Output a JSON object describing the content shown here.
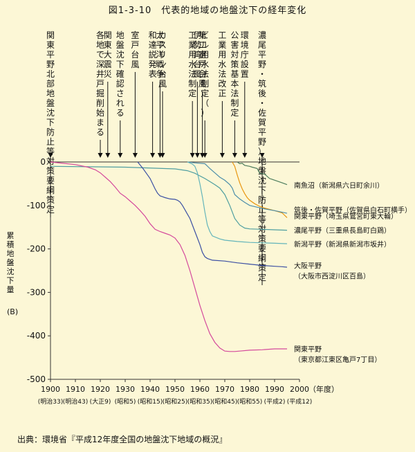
{
  "title": "図1-3-10　代表的地域の地盤沈下の経年変化",
  "source": "出典：環境省『平成12年度全国の地盤沈下地域の概況』",
  "chart_data": {
    "type": "line",
    "ylabel": "累積地盤沈下量",
    "yunit": "(B)",
    "xunit": "（年度）",
    "xlim": [
      1900,
      2000
    ],
    "ylim": [
      -500,
      0
    ],
    "xticks": [
      "1900",
      "1910",
      "1920",
      "1930",
      "1940",
      "1950",
      "1960",
      "1970",
      "1980",
      "1990",
      "2000"
    ],
    "yticks": [
      "0",
      "-100",
      "-200",
      "-300",
      "-400",
      "-500"
    ],
    "era_labels": [
      "(明治33)",
      "(明治43)",
      "(大正9)",
      "(昭和5)",
      "(昭和15)",
      "(昭和25)",
      "(昭和35)",
      "(昭和45)",
      "(昭和55)",
      "(平成2)",
      "(平成12)"
    ],
    "events": [
      {
        "year": 1900,
        "label": "関東平野北部地盤沈下防止等対策要綱策定"
      },
      {
        "year": 1985,
        "label": "濃尾平野・筑後・佐賀平野）地盤沈下防止等対策要綱策定"
      },
      {
        "year": 1978,
        "label": "環境庁設置"
      },
      {
        "year": 1974,
        "label": "公害対策基本法制定"
      },
      {
        "year": 1969,
        "label": "工業用水法改正"
      },
      {
        "year": 1962,
        "label": "ビル用水法制定（）"
      },
      {
        "year": 1961,
        "label": "第二室戸台風"
      },
      {
        "year": 1959,
        "label": "伊勢湾台風"
      },
      {
        "year": 1957,
        "label": "工業用水法制定"
      },
      {
        "year": 1945,
        "label": "カスリン台風"
      },
      {
        "year": 1944,
        "label": "太平洋戦争"
      },
      {
        "year": 1941,
        "label": "和達説発表"
      },
      {
        "year": 1934,
        "label": "室戸台風"
      },
      {
        "year": 1928,
        "label": "地盤沈下確認される"
      },
      {
        "year": 1923,
        "label": "関東大震災"
      },
      {
        "year": 1920,
        "label": "各地で深井戸掘削始まる"
      }
    ],
    "series": [
      {
        "name": "南魚沼（新潟県六日町余川）",
        "color": "#4d7d5d",
        "x": [
          1975,
          1976,
          1977,
          1978,
          1980,
          1981,
          1983,
          1984,
          1986,
          1988,
          1989,
          1991,
          1993,
          1995
        ],
        "y": [
          0,
          -4,
          -3,
          -8,
          -10,
          -12,
          -15,
          -26,
          -28,
          -38,
          -40,
          -44,
          -48,
          -52
        ]
      },
      {
        "name": "筑後・佐賀平野（佐賀県白石町横手）",
        "color": "#e8960f",
        "x": [
          1973,
          1974,
          1975,
          1976,
          1977,
          1978,
          1979,
          1980,
          1982,
          1984,
          1986,
          1988,
          1990,
          1993,
          1995
        ],
        "y": [
          0,
          -10,
          -30,
          -48,
          -62,
          -73,
          -82,
          -88,
          -96,
          -102,
          -106,
          -109,
          -112,
          -117,
          -128
        ]
      },
      {
        "name": "関東平野（埼玉県鷲宮町東大輪）",
        "color": "#4d8eaa",
        "x": [
          1955,
          1958,
          1962,
          1964,
          1966,
          1968,
          1970,
          1972,
          1973,
          1974,
          1976,
          1978,
          1980,
          1983,
          1986,
          1990,
          1995
        ],
        "y": [
          0,
          -2,
          -4,
          -15,
          -25,
          -35,
          -42,
          -52,
          -60,
          -75,
          -85,
          -93,
          -100,
          -104,
          -108,
          -112,
          -118
        ]
      },
      {
        "name": "濃尾平野（三重県長島町白鶏）",
        "color": "#4e9ea0",
        "x": [
          1900,
          1930,
          1950,
          1955,
          1958,
          1960,
          1962,
          1964,
          1966,
          1968,
          1970,
          1972,
          1974,
          1976,
          1978,
          1980,
          1985,
          1990,
          1995
        ],
        "y": [
          -10,
          -12,
          -16,
          -20,
          -26,
          -32,
          -38,
          -45,
          -52,
          -60,
          -75,
          -100,
          -130,
          -145,
          -152,
          -154,
          -155,
          -156,
          -157
        ]
      },
      {
        "name": "新潟平野（新潟県新潟市坂井）",
        "color": "#62b4ba",
        "x": [
          1955,
          1957,
          1958,
          1959,
          1960,
          1961,
          1962,
          1963,
          1964,
          1965,
          1968,
          1970,
          1975,
          1980,
          1985,
          1990,
          1995
        ],
        "y": [
          0,
          -5,
          -10,
          -25,
          -50,
          -80,
          -115,
          -145,
          -160,
          -170,
          -177,
          -180,
          -183,
          -185,
          -186,
          -187,
          -188
        ]
      },
      {
        "name": "大阪平野（大阪市西淀川区百島）",
        "color": "#3b4fa3",
        "x": [
          1935,
          1937,
          1939,
          1940,
          1941,
          1942,
          1943,
          1944,
          1945,
          1946,
          1948,
          1950,
          1951,
          1952,
          1953,
          1954,
          1955,
          1956,
          1957,
          1958,
          1959,
          1960,
          1961,
          1962,
          1963,
          1965,
          1970,
          1975,
          1980,
          1985,
          1990,
          1993,
          1995
        ],
        "y": [
          0,
          -14,
          -30,
          -38,
          -50,
          -62,
          -72,
          -78,
          -80,
          -82,
          -85,
          -86,
          -88,
          -92,
          -100,
          -110,
          -120,
          -130,
          -145,
          -160,
          -175,
          -190,
          -208,
          -218,
          -222,
          -226,
          -228,
          -232,
          -235,
          -238,
          -240,
          -241,
          -242
        ]
      },
      {
        "name": "関東平野（東京都江東区亀戸7丁目）",
        "color": "#d4499c",
        "x": [
          1900,
          1905,
          1910,
          1915,
          1918,
          1920,
          1922,
          1924,
          1926,
          1928,
          1930,
          1932,
          1934,
          1936,
          1938,
          1940,
          1942,
          1944,
          1946,
          1948,
          1950,
          1952,
          1954,
          1956,
          1958,
          1960,
          1962,
          1964,
          1966,
          1968,
          1970,
          1972,
          1974,
          1976,
          1980,
          1985,
          1990,
          1995
        ],
        "y": [
          0,
          -3,
          -6,
          -12,
          -18,
          -25,
          -35,
          -45,
          -58,
          -72,
          -80,
          -90,
          -100,
          -112,
          -125,
          -142,
          -155,
          -160,
          -164,
          -168,
          -175,
          -190,
          -215,
          -250,
          -290,
          -330,
          -365,
          -395,
          -415,
          -428,
          -435,
          -436,
          -436,
          -435,
          -433,
          -432,
          -430,
          -430
        ]
      }
    ]
  }
}
